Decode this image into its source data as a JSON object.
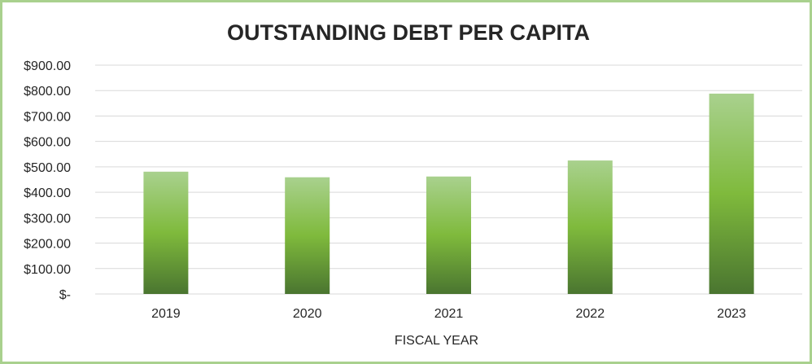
{
  "chart_data": {
    "type": "bar",
    "title": "OUTSTANDING DEBT PER CAPITA",
    "xlabel": "FISCAL YEAR",
    "ylabel": "",
    "categories": [
      "2019",
      "2020",
      "2021",
      "2022",
      "2023"
    ],
    "values": [
      481,
      459,
      462,
      525,
      788
    ],
    "ylim": [
      0,
      900
    ],
    "y_ticks": [
      0,
      100,
      200,
      300,
      400,
      500,
      600,
      700,
      800,
      900
    ],
    "y_tick_labels": [
      "$-",
      "$100.00",
      "$200.00",
      "$300.00",
      "$400.00",
      "$500.00",
      "$600.00",
      "$700.00",
      "$800.00",
      "$900.00"
    ],
    "grid": true,
    "legend": "none",
    "colors": {
      "bar_top": "#a9d18e",
      "bar_mid": "#7fba3c",
      "bar_bottom": "#4a7530",
      "grid": "#d9d9d9",
      "frame_border": "#a9d18e",
      "text": "#262626"
    }
  }
}
